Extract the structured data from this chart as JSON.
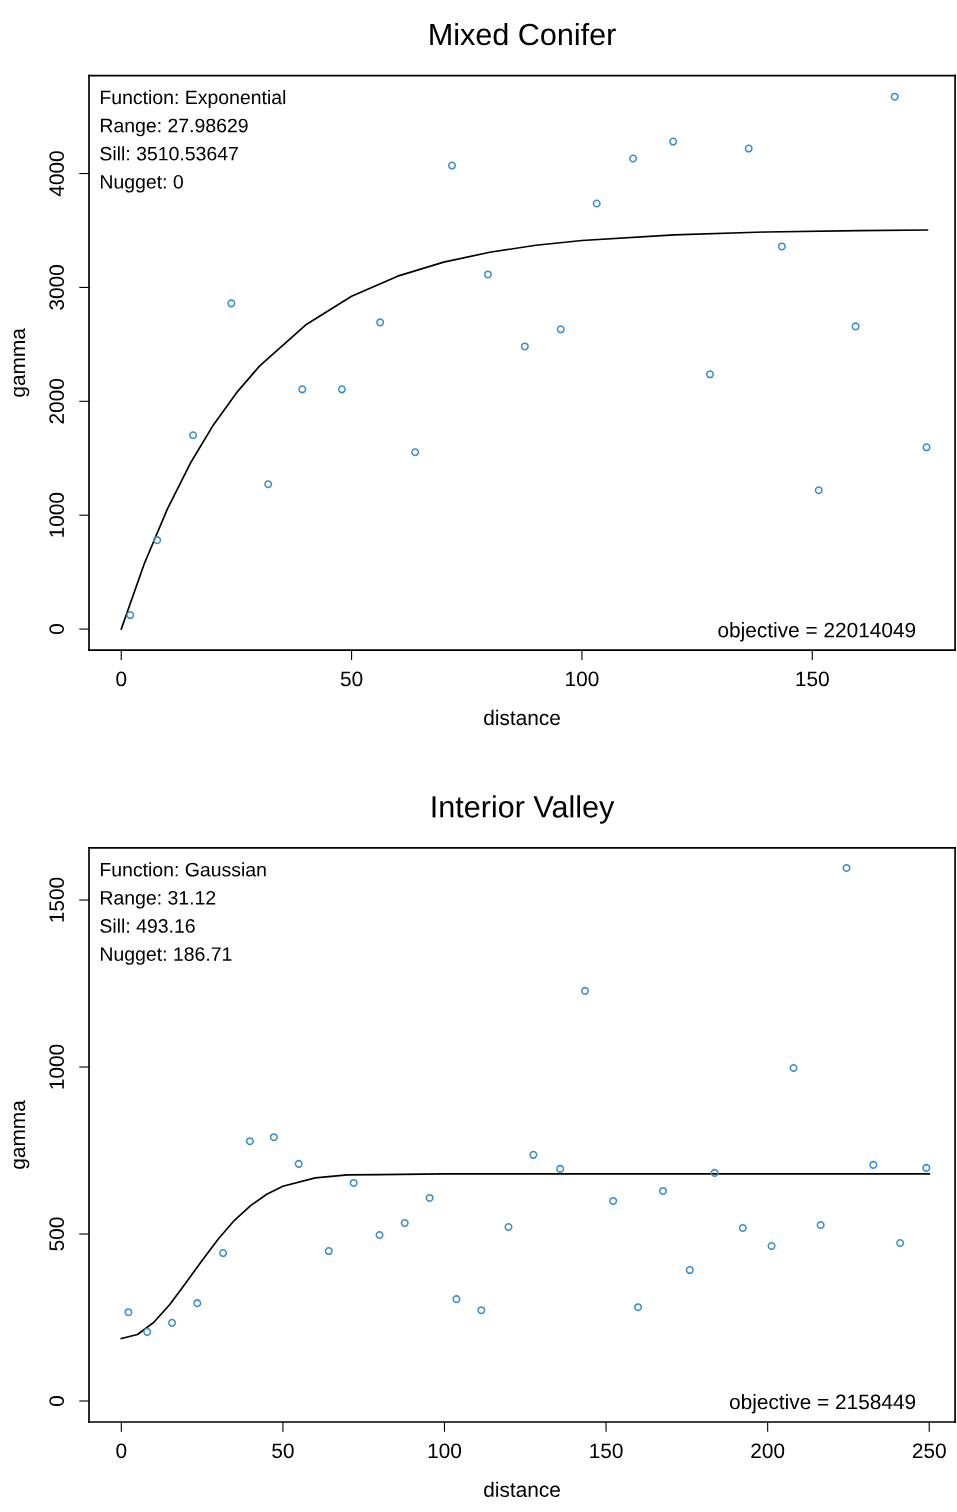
{
  "chart_data": [
    {
      "type": "scatter",
      "title": "Mixed Conifer",
      "xlabel": "distance",
      "ylabel": "gamma",
      "xlim": [
        -7,
        181
      ],
      "ylim": [
        -185,
        4860
      ],
      "xticks": [
        0,
        50,
        100,
        150
      ],
      "yticks": [
        0,
        1000,
        2000,
        3000,
        4000
      ],
      "grid": false,
      "legend": false,
      "annotations": [
        "Function: Exponential",
        "Range: 27.98629",
        "Sill: 3510.53647",
        "Nugget: 0",
        "objective = 22014049"
      ],
      "series": [
        {
          "marker": "circle",
          "color": "#3a8fc9",
          "x": [
            1.95,
            7.8,
            15.6,
            23.9,
            31.9,
            39.3,
            47.9,
            56.2,
            63.8,
            71.8,
            79.6,
            87.6,
            95.4,
            103.2,
            111.1,
            119.8,
            127.8,
            136.2,
            143.4,
            151.4,
            159.4,
            167.9,
            174.8
          ],
          "values": [
            123,
            781,
            1702,
            2860,
            1272,
            2105,
            2105,
            2693,
            1553,
            4070,
            3114,
            2482,
            2632,
            3737,
            4132,
            4281,
            2237,
            4219,
            3360,
            1219,
            2658,
            4675,
            1596
          ]
        },
        {
          "type": "line",
          "color": "#000000",
          "x": [
            0,
            5,
            10,
            15,
            20,
            25,
            30,
            40,
            50,
            60,
            70,
            80,
            90,
            100,
            120,
            140,
            160,
            175
          ],
          "values": [
            0,
            574,
            1054,
            1456,
            1793,
            2074,
            2309,
            2670,
            2923,
            3099,
            3222,
            3309,
            3370,
            3412,
            3462,
            3487,
            3499,
            3504
          ]
        }
      ]
    },
    {
      "type": "scatter",
      "title": "Interior Valley",
      "xlabel": "distance",
      "ylabel": "gamma",
      "xlim": [
        -10,
        258
      ],
      "ylim": [
        -63,
        1656
      ],
      "xticks": [
        0,
        50,
        100,
        150,
        200,
        250
      ],
      "yticks": [
        0,
        500,
        1000,
        1500
      ],
      "grid": false,
      "legend": false,
      "annotations": [
        "Function: Gaussian",
        "Range: 31.12",
        "Sill: 493.16",
        "Nugget: 186.71",
        "objective = 2158449"
      ],
      "series": [
        {
          "marker": "circle",
          "color": "#3a8fc9",
          "x": [
            2.2,
            8.0,
            15.7,
            23.5,
            31.5,
            39.8,
            47.2,
            54.9,
            64.2,
            71.9,
            79.9,
            87.7,
            95.4,
            103.7,
            111.4,
            119.8,
            127.5,
            135.8,
            143.5,
            152.2,
            159.9,
            167.6,
            175.9,
            183.6,
            192.3,
            201.2,
            208.0,
            216.4,
            224.4,
            232.7,
            241.0,
            249.1
          ],
          "values": [
            266,
            207,
            234,
            293,
            443,
            778,
            790,
            710,
            449,
            653,
            497,
            533,
            608,
            305,
            272,
            521,
            737,
            695,
            1228,
            599,
            281,
            629,
            392,
            683,
            518,
            464,
            997,
            527,
            1596,
            707,
            473,
            698
          ]
        },
        {
          "type": "line",
          "color": "#000000",
          "x": [
            0,
            5,
            10,
            15,
            20,
            25,
            30,
            35,
            40,
            45,
            50,
            60,
            70,
            80,
            100,
            150,
            200,
            250
          ],
          "values": [
            187,
            199,
            235,
            289,
            354,
            421,
            485,
            541,
            585,
            619,
            643,
            668,
            677,
            678,
            680,
            680,
            680,
            680
          ]
        }
      ]
    }
  ]
}
